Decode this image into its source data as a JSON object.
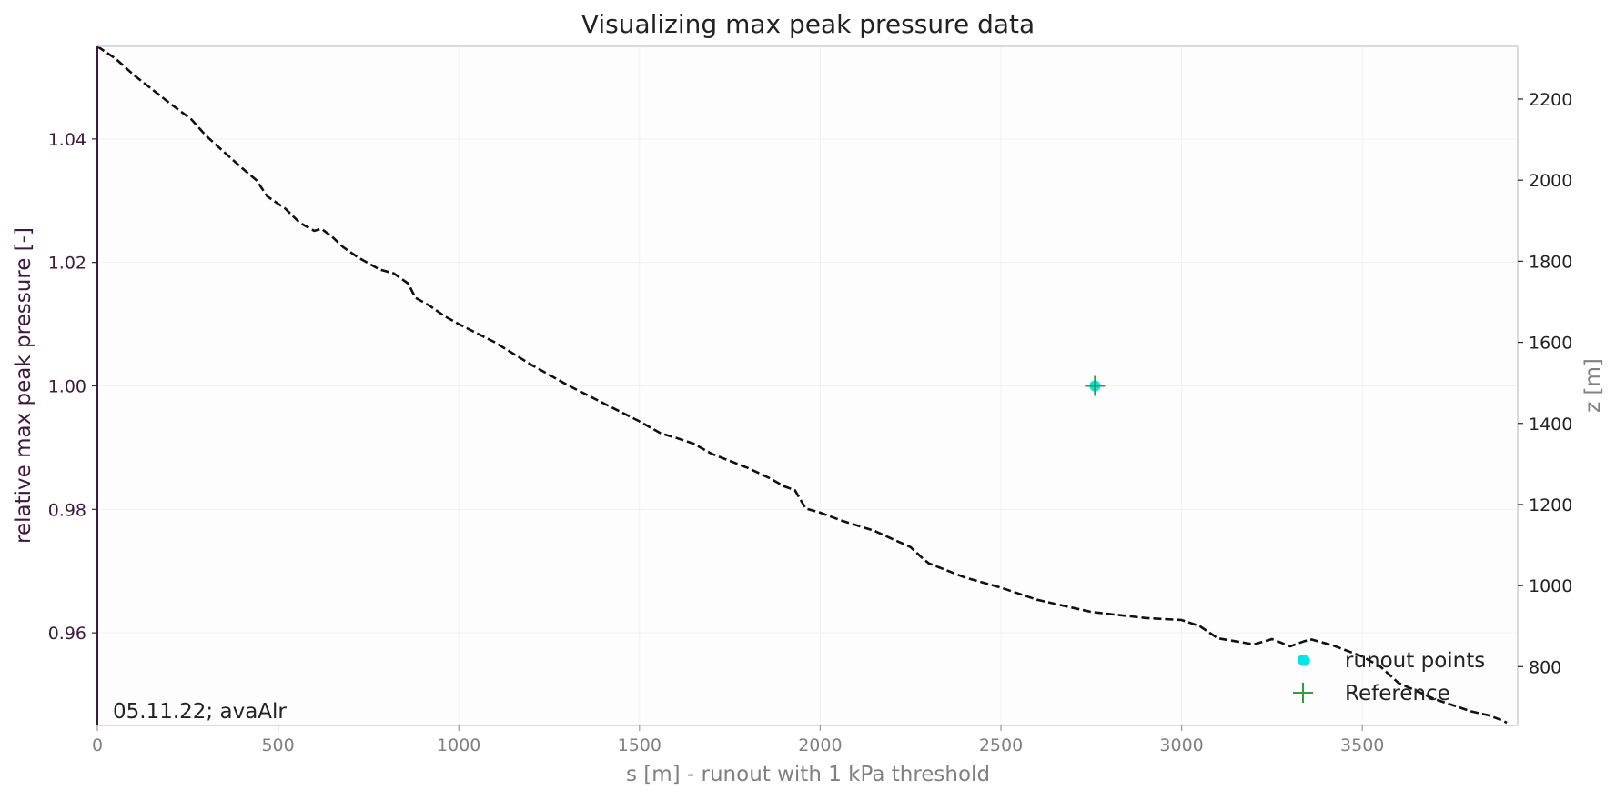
{
  "chart_data": {
    "type": "line",
    "title": "Visualizing max peak pressure data",
    "xlabel": "s [m] - runout with 1 kPa threshold",
    "ylabel_left": "relative max peak pressure [-]",
    "ylabel_right": "z [m]",
    "xlim": [
      0,
      3930
    ],
    "ylim_left": [
      0.945,
      1.055
    ],
    "ylim_right": [
      655,
      2330
    ],
    "x_ticks": [
      0,
      500,
      1000,
      1500,
      2000,
      2500,
      3000,
      3500
    ],
    "y_left_ticks": [
      0.96,
      0.98,
      1.0,
      1.02,
      1.04
    ],
    "y_left_tick_labels": [
      "0.96",
      "0.98",
      "1.00",
      "1.02",
      "1.04"
    ],
    "y_right_ticks": [
      800,
      1000,
      1200,
      1400,
      1600,
      1800,
      2000,
      2200
    ],
    "annotation": "05.11.22; avaAlr",
    "legend_position": "lower-right",
    "grid": true,
    "colors": {
      "profile": "#111111",
      "runout": "#00e5e5",
      "reference": "#2e9e3e",
      "left_axis": "#3d1a3d",
      "right_axis": "#222222",
      "muted_text": "#808080",
      "frame": "#cfcfcf"
    },
    "series": [
      {
        "name": "runout points",
        "kind": "scatter",
        "axis": "left",
        "points": [
          [
            2760,
            1.0
          ],
          [
            3340,
            0.9555
          ]
        ]
      },
      {
        "name": "Reference",
        "kind": "plus-marker",
        "axis": "left",
        "points": [
          [
            2760,
            1.0
          ]
        ]
      },
      {
        "kind": "dashed-profile",
        "axis": "right",
        "points": [
          [
            0,
            2330
          ],
          [
            50,
            2300
          ],
          [
            100,
            2260
          ],
          [
            200,
            2190
          ],
          [
            260,
            2150
          ],
          [
            300,
            2110
          ],
          [
            350,
            2070
          ],
          [
            400,
            2030
          ],
          [
            440,
            2000
          ],
          [
            470,
            1960
          ],
          [
            520,
            1930
          ],
          [
            560,
            1895
          ],
          [
            600,
            1875
          ],
          [
            620,
            1880
          ],
          [
            650,
            1860
          ],
          [
            680,
            1835
          ],
          [
            720,
            1810
          ],
          [
            780,
            1780
          ],
          [
            820,
            1770
          ],
          [
            860,
            1745
          ],
          [
            880,
            1710
          ],
          [
            920,
            1690
          ],
          [
            960,
            1665
          ],
          [
            1000,
            1645
          ],
          [
            1100,
            1600
          ],
          [
            1200,
            1545
          ],
          [
            1300,
            1495
          ],
          [
            1400,
            1450
          ],
          [
            1500,
            1405
          ],
          [
            1560,
            1375
          ],
          [
            1600,
            1365
          ],
          [
            1650,
            1350
          ],
          [
            1700,
            1325
          ],
          [
            1800,
            1290
          ],
          [
            1860,
            1265
          ],
          [
            1900,
            1245
          ],
          [
            1930,
            1235
          ],
          [
            1960,
            1190
          ],
          [
            2000,
            1180
          ],
          [
            2060,
            1160
          ],
          [
            2150,
            1135
          ],
          [
            2200,
            1115
          ],
          [
            2250,
            1095
          ],
          [
            2280,
            1070
          ],
          [
            2300,
            1055
          ],
          [
            2400,
            1020
          ],
          [
            2500,
            995
          ],
          [
            2600,
            965
          ],
          [
            2700,
            945
          ],
          [
            2750,
            935
          ],
          [
            2800,
            930
          ],
          [
            2850,
            925
          ],
          [
            2900,
            920
          ],
          [
            3000,
            915
          ],
          [
            3050,
            900
          ],
          [
            3100,
            870
          ],
          [
            3200,
            855
          ],
          [
            3250,
            868
          ],
          [
            3300,
            850
          ],
          [
            3340,
            863
          ],
          [
            3360,
            867
          ],
          [
            3380,
            862
          ],
          [
            3420,
            852
          ],
          [
            3500,
            825
          ],
          [
            3550,
            800
          ],
          [
            3600,
            760
          ],
          [
            3700,
            720
          ],
          [
            3800,
            690
          ],
          [
            3850,
            680
          ],
          [
            3880,
            670
          ],
          [
            3900,
            662
          ]
        ]
      }
    ]
  }
}
